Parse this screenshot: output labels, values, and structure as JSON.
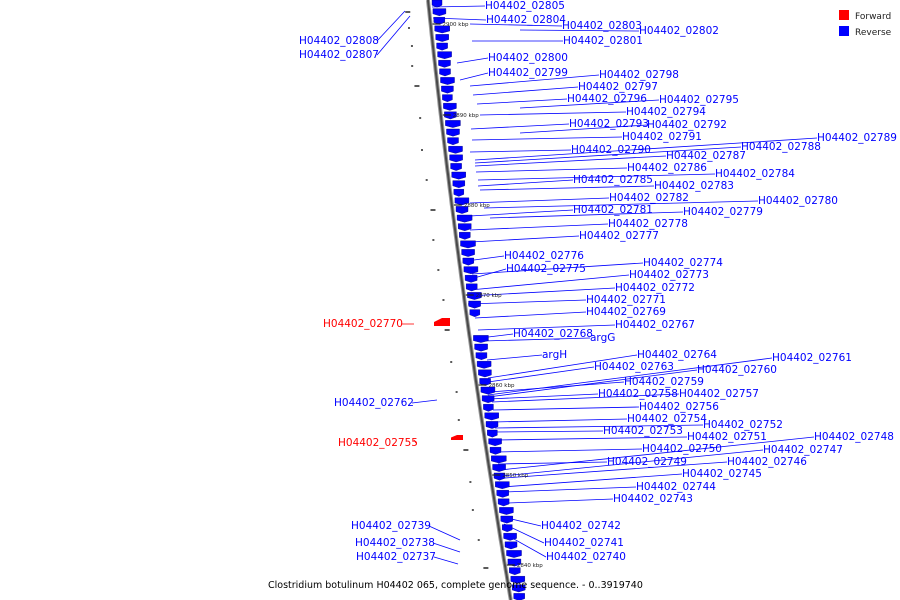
{
  "caption": "Clostridium botulinum H04402 065, complete genome sequence. - 0..3919740",
  "legend": [
    {
      "label": "Forward",
      "color": "#ff0000"
    },
    {
      "label": "Reverse",
      "color": "#0000ff"
    }
  ],
  "colors": {
    "forward": "#ff0000",
    "reverse": "#0000ff",
    "backbone": "#555555",
    "leader": "#0000ff"
  },
  "ticks": [
    "2900 kbp",
    "2890 kbp",
    "2880 kbp",
    "2870 kbp",
    "2860 kbp",
    "2850 kbp",
    "2840 kbp"
  ],
  "labels": [
    {
      "text": "H04402_02805",
      "strand": "reverse"
    },
    {
      "text": "H04402_02804",
      "strand": "reverse"
    },
    {
      "text": "H04402_02803",
      "strand": "reverse"
    },
    {
      "text": "H04402_02802",
      "strand": "reverse"
    },
    {
      "text": "H04402_02801",
      "strand": "reverse"
    },
    {
      "text": "H04402_02808",
      "strand": "reverse"
    },
    {
      "text": "H04402_02807",
      "strand": "reverse"
    },
    {
      "text": "H04402_02800",
      "strand": "reverse"
    },
    {
      "text": "H04402_02799",
      "strand": "reverse"
    },
    {
      "text": "H04402_02798",
      "strand": "reverse"
    },
    {
      "text": "H04402_02797",
      "strand": "reverse"
    },
    {
      "text": "H04402_02796",
      "strand": "reverse"
    },
    {
      "text": "H04402_02795",
      "strand": "reverse"
    },
    {
      "text": "H04402_02794",
      "strand": "reverse"
    },
    {
      "text": "H04402_02793",
      "strand": "reverse"
    },
    {
      "text": "H04402_02792",
      "strand": "reverse"
    },
    {
      "text": "H04402_02791",
      "strand": "reverse"
    },
    {
      "text": "H04402_02789",
      "strand": "reverse"
    },
    {
      "text": "H04402_02788",
      "strand": "reverse"
    },
    {
      "text": "H04402_02790",
      "strand": "reverse"
    },
    {
      "text": "H04402_02787",
      "strand": "reverse"
    },
    {
      "text": "H04402_02786",
      "strand": "reverse"
    },
    {
      "text": "H04402_02784",
      "strand": "reverse"
    },
    {
      "text": "H04402_02785",
      "strand": "reverse"
    },
    {
      "text": "H04402_02783",
      "strand": "reverse"
    },
    {
      "text": "H04402_02782",
      "strand": "reverse"
    },
    {
      "text": "H04402_02780",
      "strand": "reverse"
    },
    {
      "text": "H04402_02781",
      "strand": "reverse"
    },
    {
      "text": "H04402_02779",
      "strand": "reverse"
    },
    {
      "text": "H04402_02778",
      "strand": "reverse"
    },
    {
      "text": "H04402_02777",
      "strand": "reverse"
    },
    {
      "text": "H04402_02776",
      "strand": "reverse"
    },
    {
      "text": "H04402_02774",
      "strand": "reverse"
    },
    {
      "text": "H04402_02775",
      "strand": "reverse"
    },
    {
      "text": "H04402_02773",
      "strand": "reverse"
    },
    {
      "text": "H04402_02772",
      "strand": "reverse"
    },
    {
      "text": "H04402_02771",
      "strand": "reverse"
    },
    {
      "text": "H04402_02769",
      "strand": "reverse"
    },
    {
      "text": "H04402_02770",
      "strand": "forward"
    },
    {
      "text": "H04402_02767",
      "strand": "reverse"
    },
    {
      "text": "H04402_02768",
      "strand": "reverse"
    },
    {
      "text": "argG",
      "strand": "reverse"
    },
    {
      "text": "argH",
      "strand": "reverse"
    },
    {
      "text": "H04402_02764",
      "strand": "reverse"
    },
    {
      "text": "H04402_02761",
      "strand": "reverse"
    },
    {
      "text": "H04402_02763",
      "strand": "reverse"
    },
    {
      "text": "H04402_02760",
      "strand": "reverse"
    },
    {
      "text": "H04402_02759",
      "strand": "reverse"
    },
    {
      "text": "H04402_02758",
      "strand": "reverse"
    },
    {
      "text": "H04402_02757",
      "strand": "reverse"
    },
    {
      "text": "H04402_02762",
      "strand": "reverse"
    },
    {
      "text": "H04402_02756",
      "strand": "reverse"
    },
    {
      "text": "H04402_02754",
      "strand": "reverse"
    },
    {
      "text": "H04402_02752",
      "strand": "reverse"
    },
    {
      "text": "H04402_02753",
      "strand": "reverse"
    },
    {
      "text": "H04402_02751",
      "strand": "reverse"
    },
    {
      "text": "H04402_02755",
      "strand": "forward"
    },
    {
      "text": "H04402_02748",
      "strand": "reverse"
    },
    {
      "text": "H04402_02750",
      "strand": "reverse"
    },
    {
      "text": "H04402_02747",
      "strand": "reverse"
    },
    {
      "text": "H04402_02749",
      "strand": "reverse"
    },
    {
      "text": "H04402_02746",
      "strand": "reverse"
    },
    {
      "text": "H04402_02745",
      "strand": "reverse"
    },
    {
      "text": "H04402_02744",
      "strand": "reverse"
    },
    {
      "text": "H04402_02743",
      "strand": "reverse"
    },
    {
      "text": "H04402_02742",
      "strand": "reverse"
    },
    {
      "text": "H04402_02739",
      "strand": "reverse"
    },
    {
      "text": "H04402_02738",
      "strand": "reverse"
    },
    {
      "text": "H04402_02741",
      "strand": "reverse"
    },
    {
      "text": "H04402_02737",
      "strand": "reverse"
    },
    {
      "text": "H04402_02740",
      "strand": "reverse"
    }
  ]
}
